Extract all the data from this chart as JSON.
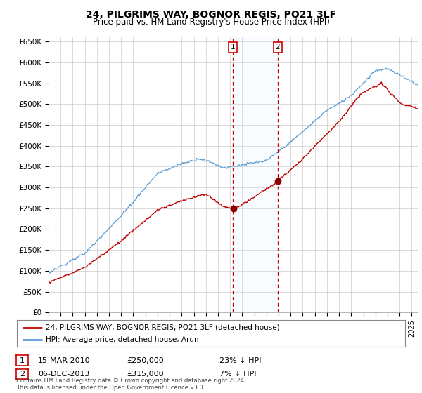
{
  "title": "24, PILGRIMS WAY, BOGNOR REGIS, PO21 3LF",
  "subtitle": "Price paid vs. HM Land Registry's House Price Index (HPI)",
  "hpi_color": "#5b9bd5",
  "price_color": "#c00000",
  "vline_color": "#cc0000",
  "span_color": "#ddeeff",
  "background_color": "#ffffff",
  "grid_color": "#cccccc",
  "sale1_date_num": 2010.21,
  "sale1_price": 250000,
  "sale2_date_num": 2013.92,
  "sale2_price": 315000,
  "legend_label1": "24, PILGRIMS WAY, BOGNOR REGIS, PO21 3LF (detached house)",
  "legend_label2": "HPI: Average price, detached house, Arun",
  "annotation1_date": "15-MAR-2010",
  "annotation1_price": "£250,000",
  "annotation1_hpi": "23% ↓ HPI",
  "annotation2_date": "06-DEC-2013",
  "annotation2_price": "£315,000",
  "annotation2_hpi": "7% ↓ HPI",
  "footer": "Contains HM Land Registry data © Crown copyright and database right 2024.\nThis data is licensed under the Open Government Licence v3.0.",
  "ylim": [
    0,
    660000
  ],
  "xlim_start": 1995.0,
  "xlim_end": 2025.5
}
